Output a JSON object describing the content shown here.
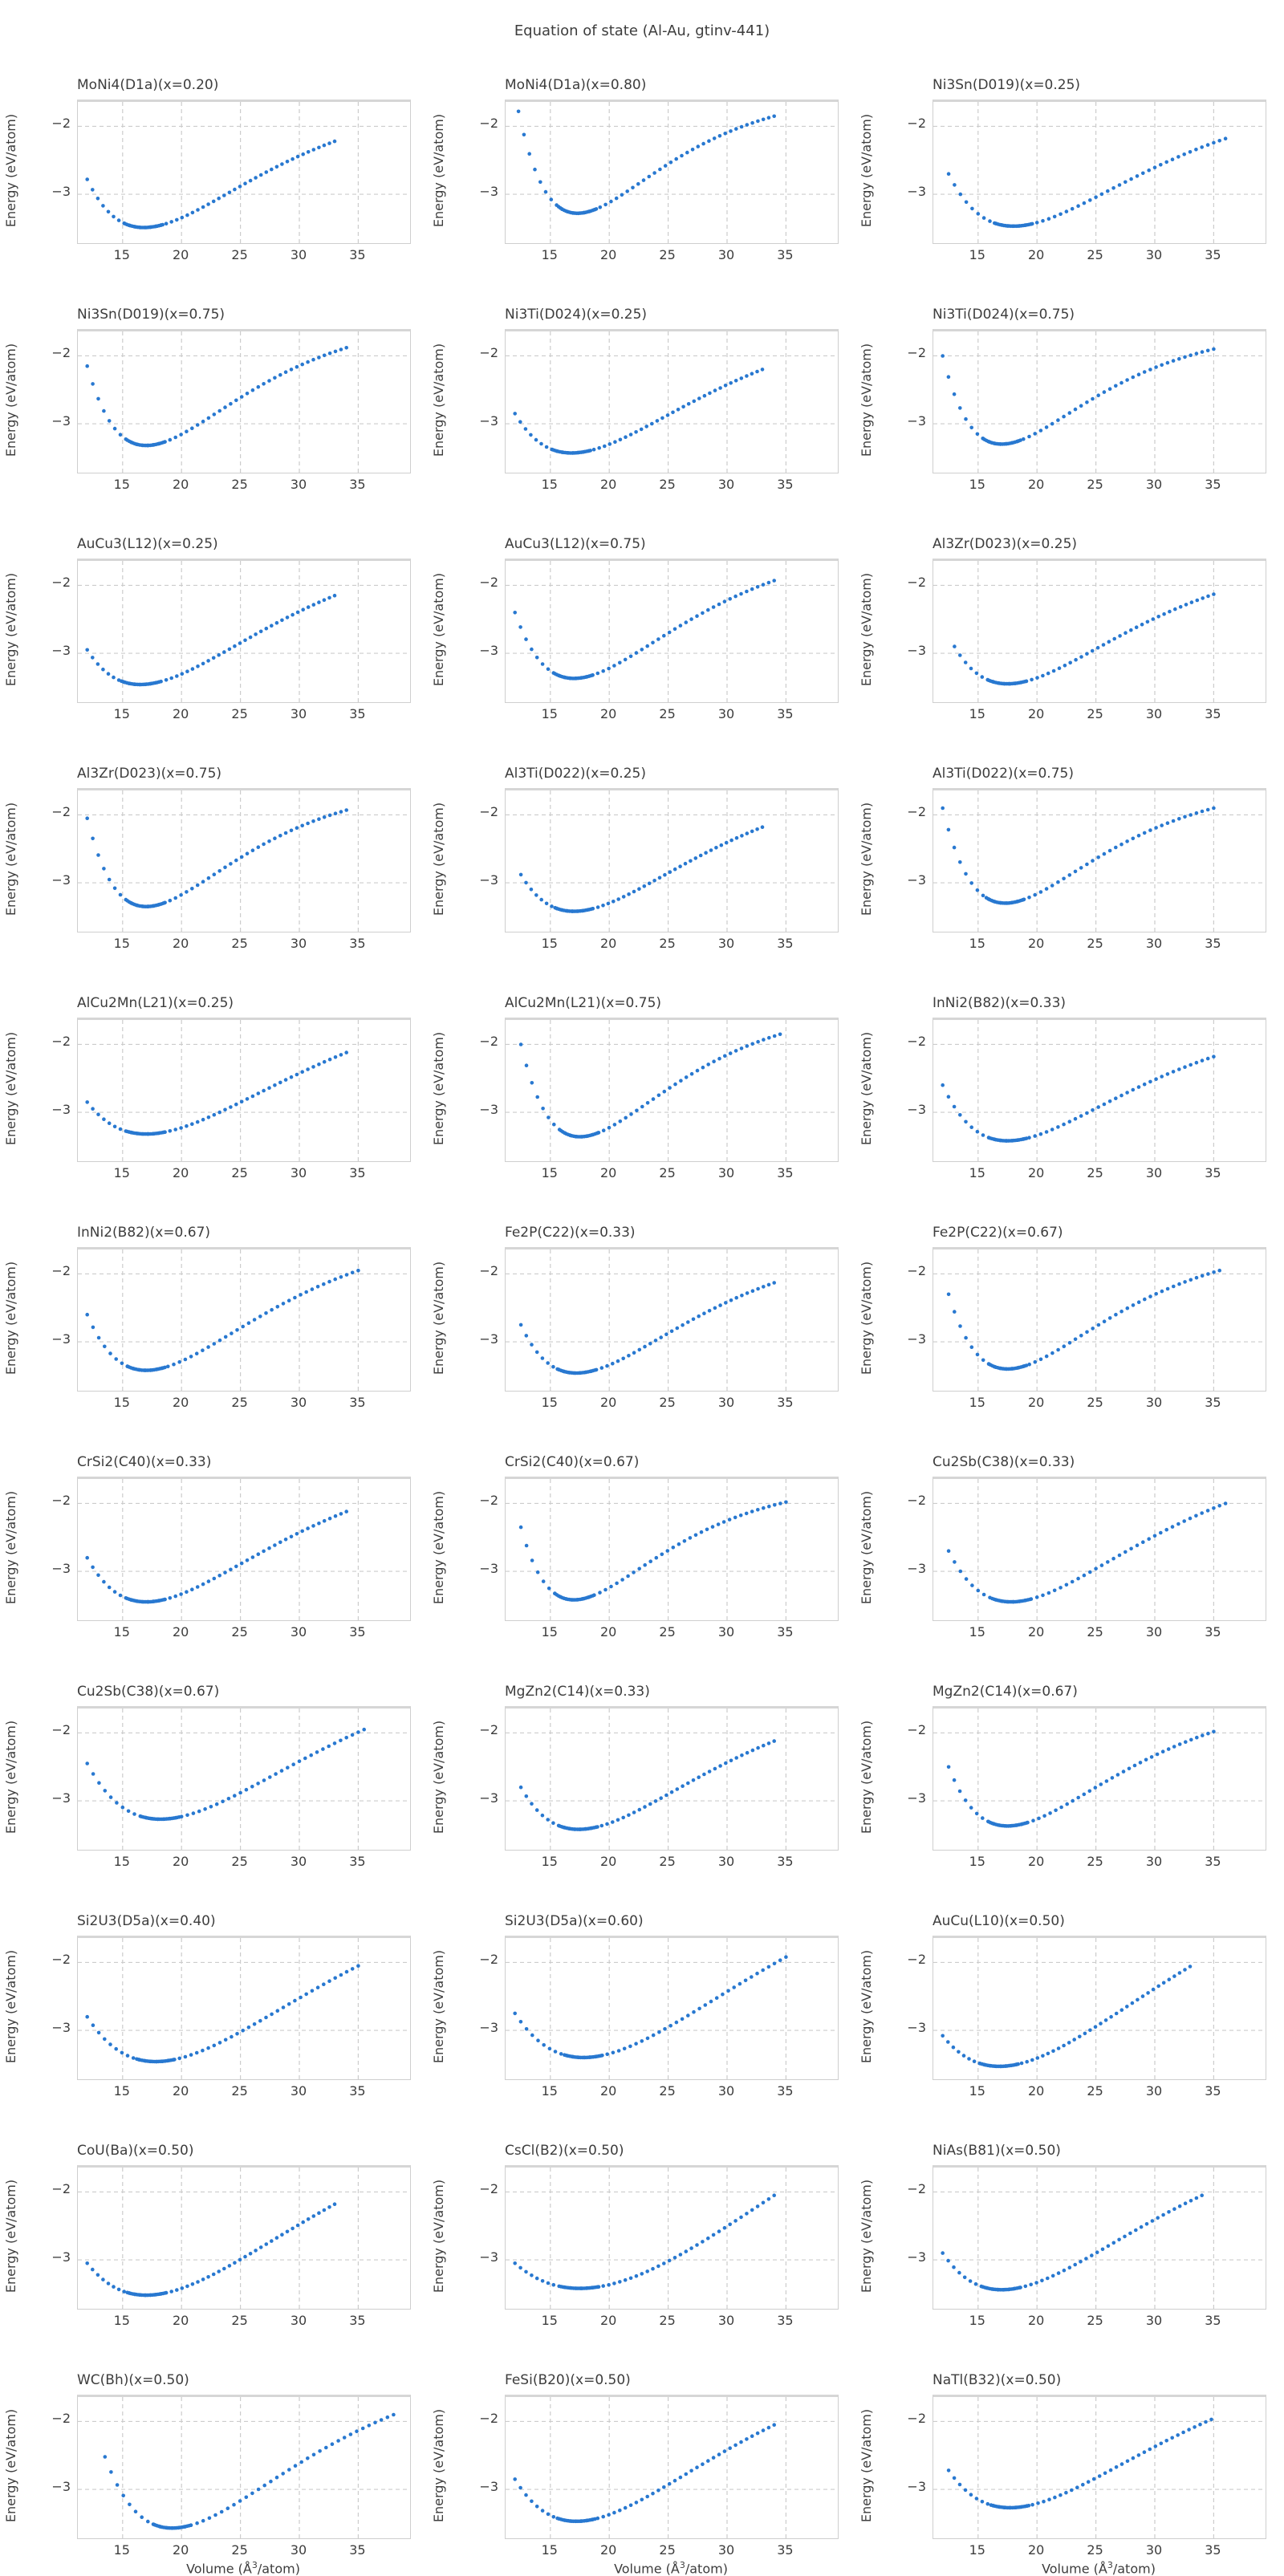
{
  "suptitle": "Equation of state (Al-Au, gtinv-441)",
  "axes": {
    "ylabel": "Energy (eV/atom)",
    "xlabel": "Volume (Å³/atom)",
    "xticks": [
      15,
      20,
      25,
      30,
      35
    ],
    "yticks": [
      -2,
      -3
    ],
    "xlim": [
      11.2,
      39.4
    ],
    "ylim": [
      -3.72,
      -1.64
    ],
    "grid_style": "dashed",
    "marker_color": "#2878d0",
    "grid_color": "#cccccc",
    "spine_color": "#cfcfcf",
    "text_color": "#3d3d3d"
  },
  "chart_data": [
    {
      "type": "scatter",
      "title": "MoNi4(D1a)(x=0.20)",
      "curve": {
        "v_start": 12.0,
        "e_start": -2.78,
        "v_min": 16.8,
        "e_min": -3.49,
        "v_end": 33.0,
        "e_end": -2.22
      }
    },
    {
      "type": "scatter",
      "title": "MoNi4(D1a)(x=0.80)",
      "curve": {
        "v_start": 12.3,
        "e_start": -1.78,
        "v_min": 17.3,
        "e_min": -3.28,
        "v_end": 34.0,
        "e_end": -1.85
      }
    },
    {
      "type": "scatter",
      "title": "Ni3Sn(D019)(x=0.25)",
      "curve": {
        "v_start": 12.5,
        "e_start": -2.7,
        "v_min": 18.0,
        "e_min": -3.47,
        "v_end": 36.0,
        "e_end": -2.18
      }
    },
    {
      "type": "scatter",
      "title": "Ni3Sn(D019)(x=0.75)",
      "curve": {
        "v_start": 12.0,
        "e_start": -2.15,
        "v_min": 17.0,
        "e_min": -3.32,
        "v_end": 34.0,
        "e_end": -1.88
      }
    },
    {
      "type": "scatter",
      "title": "Ni3Ti(D024)(x=0.25)",
      "curve": {
        "v_start": 12.0,
        "e_start": -2.85,
        "v_min": 16.8,
        "e_min": -3.43,
        "v_end": 33.0,
        "e_end": -2.2
      }
    },
    {
      "type": "scatter",
      "title": "Ni3Ti(D024)(x=0.75)",
      "curve": {
        "v_start": 12.0,
        "e_start": -2.0,
        "v_min": 17.0,
        "e_min": -3.3,
        "v_end": 35.0,
        "e_end": -1.9
      }
    },
    {
      "type": "scatter",
      "title": "AuCu3(L12)(x=0.25)",
      "curve": {
        "v_start": 12.0,
        "e_start": -2.95,
        "v_min": 16.5,
        "e_min": -3.46,
        "v_end": 33.0,
        "e_end": -2.15
      }
    },
    {
      "type": "scatter",
      "title": "AuCu3(L12)(x=0.75)",
      "curve": {
        "v_start": 12.0,
        "e_start": -2.4,
        "v_min": 17.0,
        "e_min": -3.37,
        "v_end": 34.0,
        "e_end": -1.93
      }
    },
    {
      "type": "scatter",
      "title": "Al3Zr(D023)(x=0.25)",
      "curve": {
        "v_start": 13.0,
        "e_start": -2.9,
        "v_min": 17.5,
        "e_min": -3.45,
        "v_end": 35.0,
        "e_end": -2.13
      }
    },
    {
      "type": "scatter",
      "title": "Al3Zr(D023)(x=0.75)",
      "curve": {
        "v_start": 12.0,
        "e_start": -2.05,
        "v_min": 17.0,
        "e_min": -3.35,
        "v_end": 34.0,
        "e_end": -1.93
      }
    },
    {
      "type": "scatter",
      "title": "Al3Ti(D022)(x=0.25)",
      "curve": {
        "v_start": 12.5,
        "e_start": -2.88,
        "v_min": 17.0,
        "e_min": -3.42,
        "v_end": 33.0,
        "e_end": -2.18
      }
    },
    {
      "type": "scatter",
      "title": "Al3Ti(D022)(x=0.75)",
      "curve": {
        "v_start": 12.0,
        "e_start": -1.9,
        "v_min": 17.3,
        "e_min": -3.3,
        "v_end": 35.0,
        "e_end": -1.9
      }
    },
    {
      "type": "scatter",
      "title": "AlCu2Mn(L21)(x=0.25)",
      "curve": {
        "v_start": 12.0,
        "e_start": -2.85,
        "v_min": 17.0,
        "e_min": -3.32,
        "v_end": 34.0,
        "e_end": -2.12
      }
    },
    {
      "type": "scatter",
      "title": "AlCu2Mn(L21)(x=0.75)",
      "curve": {
        "v_start": 12.5,
        "e_start": -2.0,
        "v_min": 17.5,
        "e_min": -3.36,
        "v_end": 34.5,
        "e_end": -1.85
      }
    },
    {
      "type": "scatter",
      "title": "InNi2(B82)(x=0.33)",
      "curve": {
        "v_start": 12.0,
        "e_start": -2.6,
        "v_min": 17.5,
        "e_min": -3.42,
        "v_end": 35.0,
        "e_end": -2.18
      }
    },
    {
      "type": "scatter",
      "title": "InNi2(B82)(x=0.67)",
      "curve": {
        "v_start": 12.0,
        "e_start": -2.6,
        "v_min": 17.0,
        "e_min": -3.42,
        "v_end": 35.0,
        "e_end": -1.95
      }
    },
    {
      "type": "scatter",
      "title": "Fe2P(C22)(x=0.33)",
      "curve": {
        "v_start": 12.5,
        "e_start": -2.75,
        "v_min": 17.2,
        "e_min": -3.46,
        "v_end": 34.0,
        "e_end": -2.13
      }
    },
    {
      "type": "scatter",
      "title": "Fe2P(C22)(x=0.67)",
      "curve": {
        "v_start": 12.5,
        "e_start": -2.3,
        "v_min": 17.5,
        "e_min": -3.4,
        "v_end": 35.5,
        "e_end": -1.95
      }
    },
    {
      "type": "scatter",
      "title": "CrSi2(C40)(x=0.33)",
      "curve": {
        "v_start": 12.0,
        "e_start": -2.8,
        "v_min": 17.0,
        "e_min": -3.45,
        "v_end": 34.0,
        "e_end": -2.12
      }
    },
    {
      "type": "scatter",
      "title": "CrSi2(C40)(x=0.67)",
      "curve": {
        "v_start": 12.5,
        "e_start": -2.35,
        "v_min": 17.0,
        "e_min": -3.42,
        "v_end": 35.0,
        "e_end": -1.98
      }
    },
    {
      "type": "scatter",
      "title": "Cu2Sb(C38)(x=0.33)",
      "curve": {
        "v_start": 12.5,
        "e_start": -2.7,
        "v_min": 17.8,
        "e_min": -3.45,
        "v_end": 36.0,
        "e_end": -2.0
      }
    },
    {
      "type": "scatter",
      "title": "Cu2Sb(C38)(x=0.67)",
      "curve": {
        "v_start": 12.0,
        "e_start": -2.45,
        "v_min": 18.2,
        "e_min": -3.27,
        "v_end": 35.5,
        "e_end": -1.95
      }
    },
    {
      "type": "scatter",
      "title": "MgZn2(C14)(x=0.33)",
      "curve": {
        "v_start": 12.5,
        "e_start": -2.8,
        "v_min": 17.4,
        "e_min": -3.42,
        "v_end": 34.0,
        "e_end": -2.12
      }
    },
    {
      "type": "scatter",
      "title": "MgZn2(C14)(x=0.67)",
      "curve": {
        "v_start": 12.5,
        "e_start": -2.5,
        "v_min": 17.5,
        "e_min": -3.37,
        "v_end": 35.0,
        "e_end": -1.98
      }
    },
    {
      "type": "scatter",
      "title": "Si2U3(D5a)(x=0.40)",
      "curve": {
        "v_start": 12.0,
        "e_start": -2.8,
        "v_min": 17.8,
        "e_min": -3.46,
        "v_end": 35.0,
        "e_end": -2.05
      }
    },
    {
      "type": "scatter",
      "title": "Si2U3(D5a)(x=0.60)",
      "curve": {
        "v_start": 12.0,
        "e_start": -2.75,
        "v_min": 17.8,
        "e_min": -3.4,
        "v_end": 35.0,
        "e_end": -1.92
      }
    },
    {
      "type": "scatter",
      "title": "AuCu(L10)(x=0.50)",
      "curve": {
        "v_start": 12.0,
        "e_start": -3.08,
        "v_min": 16.8,
        "e_min": -3.53,
        "v_end": 33.0,
        "e_end": -2.06
      }
    },
    {
      "type": "scatter",
      "title": "CoU(Ba)(x=0.50)",
      "curve": {
        "v_start": 12.0,
        "e_start": -3.05,
        "v_min": 17.0,
        "e_min": -3.52,
        "v_end": 33.0,
        "e_end": -2.18
      }
    },
    {
      "type": "scatter",
      "title": "CsCl(B2)(x=0.50)",
      "curve": {
        "v_start": 12.0,
        "e_start": -3.05,
        "v_min": 17.5,
        "e_min": -3.42,
        "v_end": 34.0,
        "e_end": -2.05
      }
    },
    {
      "type": "scatter",
      "title": "NiAs(B81)(x=0.50)",
      "curve": {
        "v_start": 12.0,
        "e_start": -2.9,
        "v_min": 17.0,
        "e_min": -3.44,
        "v_end": 34.0,
        "e_end": -2.05
      }
    },
    {
      "type": "scatter",
      "title": "WC(Bh)(x=0.50)",
      "curve": {
        "v_start": 13.5,
        "e_start": -2.52,
        "v_min": 19.2,
        "e_min": -3.57,
        "v_end": 38.0,
        "e_end": -1.9
      }
    },
    {
      "type": "scatter",
      "title": "FeSi(B20)(x=0.50)",
      "curve": {
        "v_start": 12.0,
        "e_start": -2.85,
        "v_min": 17.2,
        "e_min": -3.47,
        "v_end": 34.0,
        "e_end": -2.05
      }
    },
    {
      "type": "scatter",
      "title": "NaTl(B32)(x=0.50)",
      "curve": {
        "v_start": 12.5,
        "e_start": -2.72,
        "v_min": 17.7,
        "e_min": -3.27,
        "v_end": 34.8,
        "e_end": -1.97
      }
    }
  ]
}
